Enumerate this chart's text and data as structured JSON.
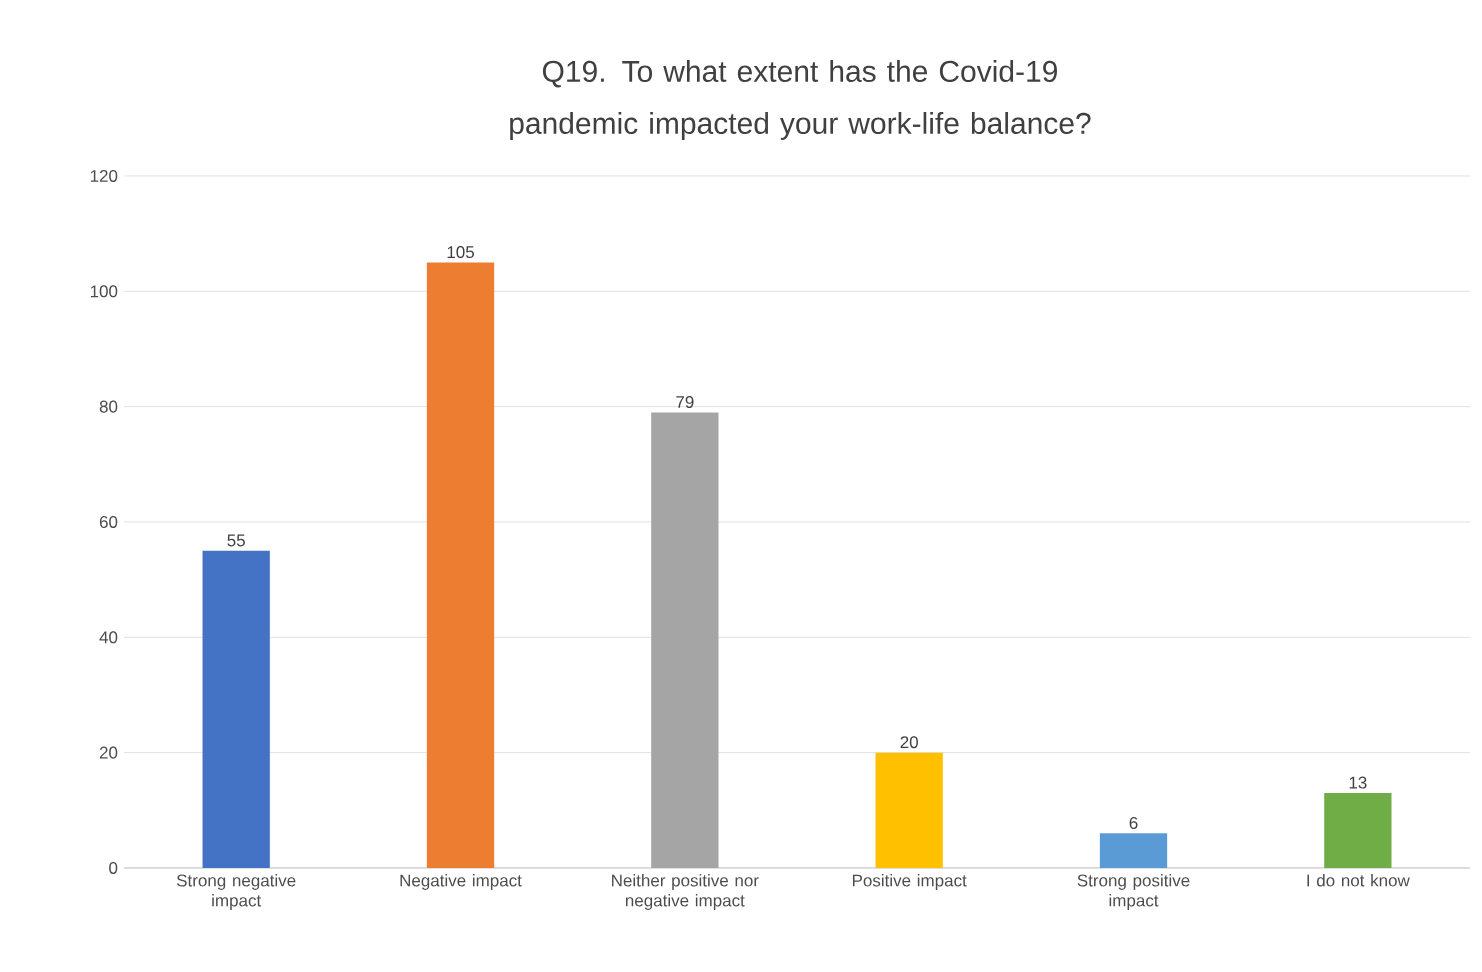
{
  "chart_data": {
    "type": "bar",
    "title": "Q19. To what extent has the Covid-19 pandemic impacted your work-life balance?",
    "categories": [
      "Strong negative impact",
      "Negative impact",
      "Neither positive nor negative impact",
      "Positive impact",
      "Strong positive impact",
      "I do not know"
    ],
    "values": [
      55,
      105,
      79,
      20,
      6,
      13
    ],
    "colors": [
      "#4472c4",
      "#ed7d31",
      "#a5a5a5",
      "#ffc000",
      "#5b9bd5",
      "#70ad47"
    ],
    "ylim": [
      0,
      120
    ],
    "yticks": [
      0,
      20,
      40,
      60,
      80,
      100,
      120
    ],
    "grid": "y",
    "data_labels": true
  }
}
